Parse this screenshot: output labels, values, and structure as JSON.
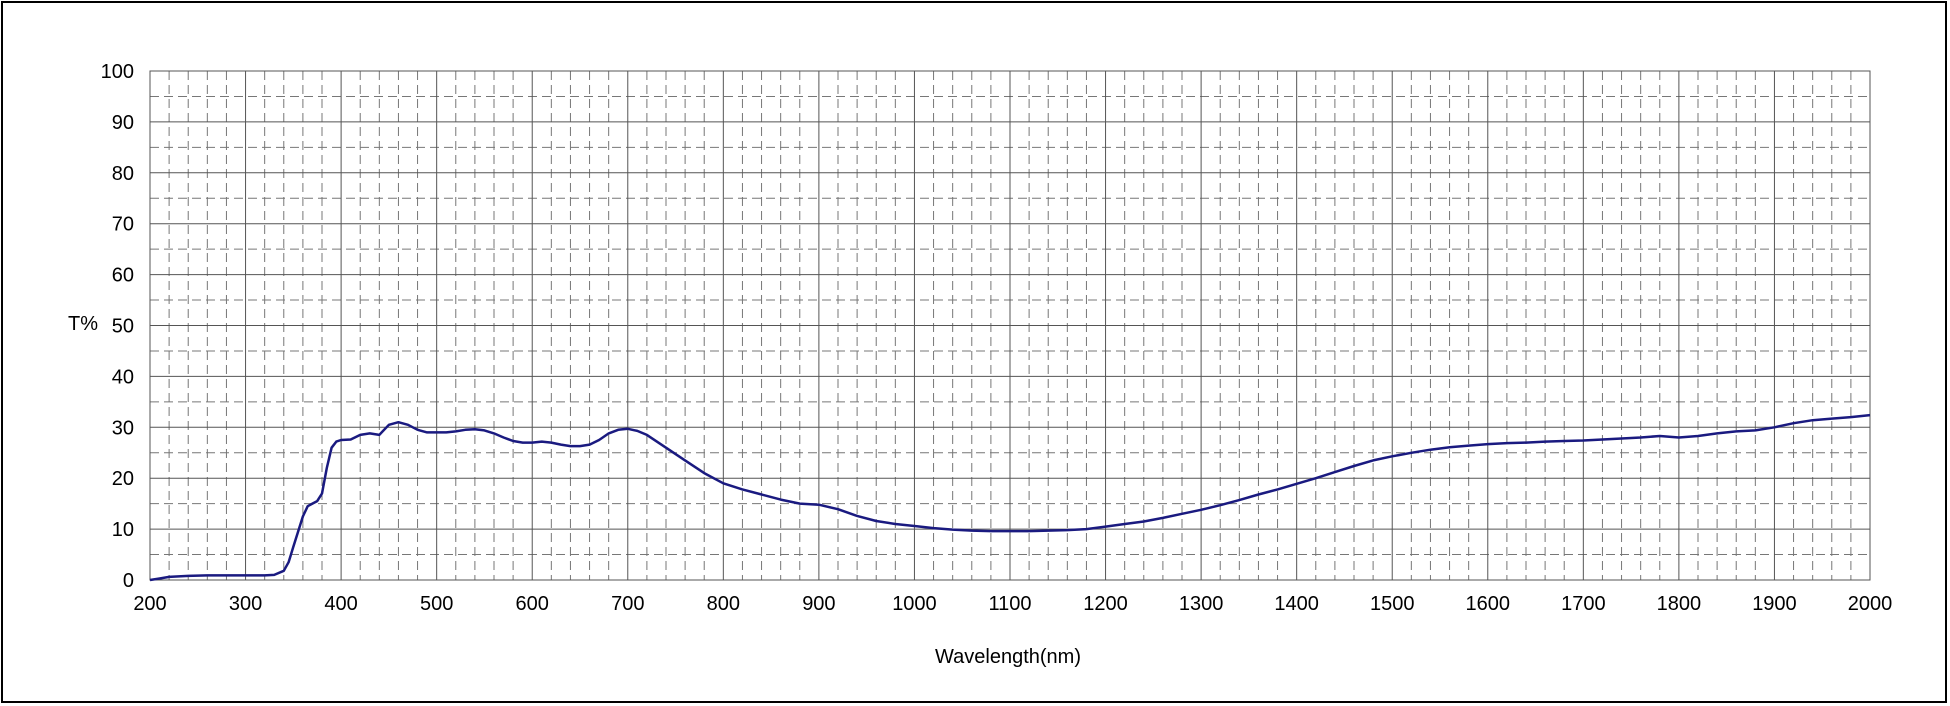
{
  "chart_data": {
    "type": "line",
    "title": "",
    "xlabel": "Wavelength(nm)",
    "ylabel": "T%",
    "xlim": [
      200,
      2000
    ],
    "ylim": [
      0,
      100
    ],
    "x_ticks": [
      200,
      300,
      400,
      500,
      600,
      700,
      800,
      900,
      1000,
      1100,
      1200,
      1300,
      1400,
      1500,
      1600,
      1700,
      1800,
      1900,
      2000
    ],
    "y_ticks": [
      0,
      10,
      20,
      30,
      40,
      50,
      60,
      70,
      80,
      90,
      100
    ],
    "grid": "major solid, minor dashed",
    "legend": "none",
    "line_color": "#1a1a80",
    "series": [
      {
        "x": [
          200,
          210,
          220,
          240,
          260,
          280,
          300,
          320,
          330,
          340,
          345,
          350,
          355,
          360,
          365,
          370,
          375,
          380,
          385,
          390,
          395,
          400,
          410,
          420,
          430,
          440,
          450,
          460,
          470,
          480,
          490,
          500,
          510,
          520,
          530,
          540,
          550,
          560,
          570,
          580,
          590,
          600,
          610,
          620,
          630,
          640,
          650,
          660,
          670,
          680,
          690,
          700,
          710,
          720,
          740,
          760,
          780,
          800,
          820,
          840,
          860,
          880,
          900,
          920,
          940,
          960,
          980,
          1000,
          1020,
          1040,
          1060,
          1080,
          1100,
          1120,
          1140,
          1160,
          1180,
          1200,
          1220,
          1240,
          1260,
          1280,
          1300,
          1320,
          1340,
          1360,
          1380,
          1400,
          1420,
          1440,
          1460,
          1480,
          1500,
          1520,
          1540,
          1560,
          1580,
          1600,
          1620,
          1640,
          1660,
          1680,
          1700,
          1720,
          1740,
          1760,
          1780,
          1800,
          1820,
          1840,
          1860,
          1880,
          1900,
          1920,
          1940,
          1960,
          1980,
          2000
        ],
        "y": [
          0,
          0.3,
          0.6,
          0.8,
          0.9,
          0.9,
          0.9,
          0.9,
          1.0,
          1.8,
          3.5,
          6.5,
          9.5,
          12.5,
          14.5,
          15.0,
          15.5,
          17.0,
          22.0,
          26.0,
          27.2,
          27.5,
          27.6,
          28.5,
          28.8,
          28.5,
          30.5,
          31.0,
          30.5,
          29.5,
          29.0,
          29.0,
          29.0,
          29.2,
          29.5,
          29.6,
          29.4,
          28.8,
          28.0,
          27.3,
          27.0,
          27.0,
          27.2,
          27.0,
          26.6,
          26.3,
          26.3,
          26.6,
          27.5,
          28.8,
          29.5,
          29.7,
          29.3,
          28.5,
          26.0,
          23.5,
          21.0,
          19.0,
          17.8,
          16.8,
          15.8,
          15.0,
          14.8,
          13.9,
          12.6,
          11.6,
          11.0,
          10.6,
          10.2,
          9.9,
          9.7,
          9.6,
          9.6,
          9.6,
          9.7,
          9.8,
          10.0,
          10.5,
          11.0,
          11.5,
          12.2,
          13.0,
          13.8,
          14.7,
          15.7,
          16.8,
          17.8,
          18.9,
          20.0,
          21.2,
          22.4,
          23.5,
          24.3,
          25.0,
          25.6,
          26.1,
          26.4,
          26.7,
          26.9,
          27.0,
          27.2,
          27.3,
          27.4,
          27.6,
          27.8,
          28.0,
          28.3,
          28.0,
          28.3,
          28.8,
          29.2,
          29.4,
          30.0,
          30.8,
          31.4,
          31.7,
          32.0,
          32.4
        ]
      }
    ]
  }
}
